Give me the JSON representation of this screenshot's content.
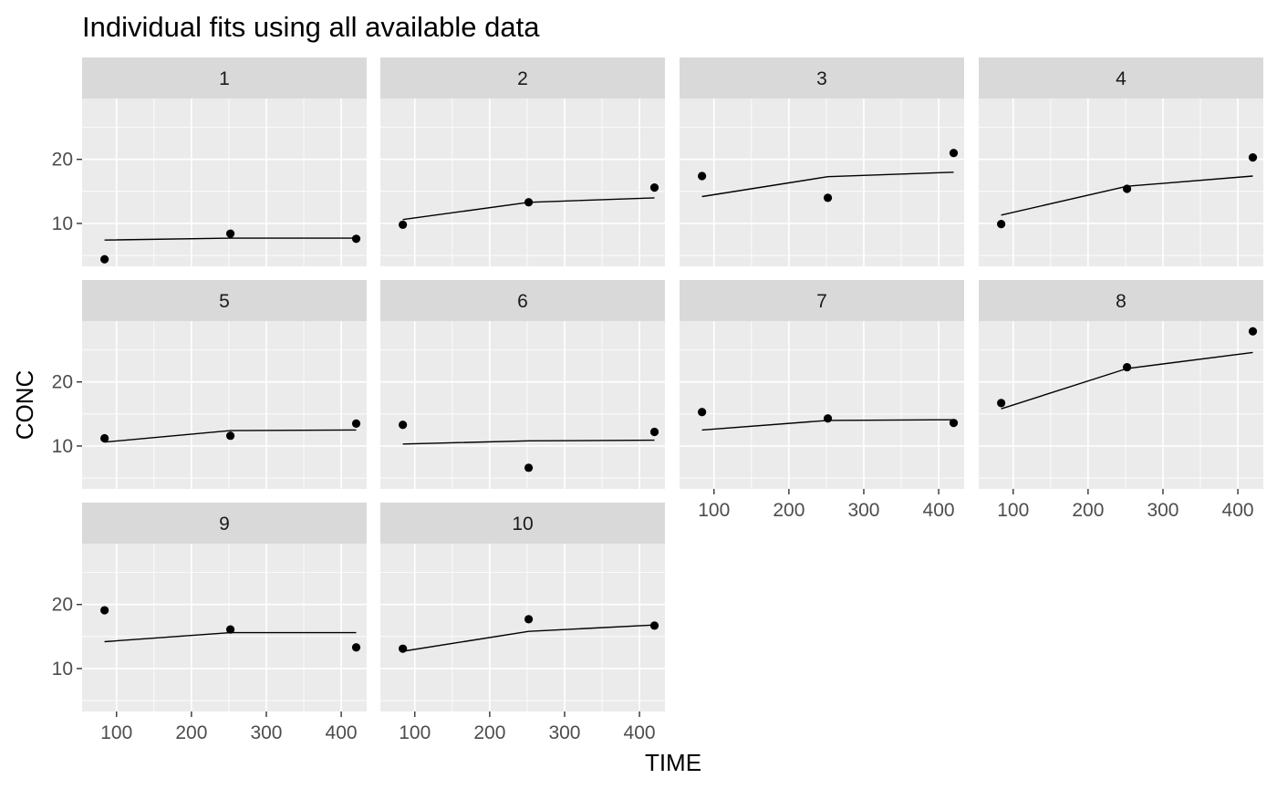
{
  "chart_data": {
    "type": "scatter",
    "title": "Individual fits using all available data",
    "xlabel": "TIME",
    "ylabel": "CONC",
    "facet_layout": {
      "columns": 4,
      "rows": 3
    },
    "xlim": [
      54,
      434
    ],
    "ylim": [
      3.3,
      29.5
    ],
    "x_ticks": [
      100,
      200,
      300,
      400
    ],
    "y_ticks": [
      10,
      20
    ],
    "grid": true,
    "legend": "none",
    "panels": [
      {
        "label": "1",
        "points": [
          [
            84,
            4.4
          ],
          [
            252,
            8.4
          ],
          [
            420,
            7.6
          ]
        ],
        "fit": [
          [
            84,
            7.4
          ],
          [
            252,
            7.7
          ],
          [
            420,
            7.7
          ]
        ]
      },
      {
        "label": "2",
        "points": [
          [
            84,
            9.8
          ],
          [
            252,
            13.3
          ],
          [
            420,
            15.6
          ]
        ],
        "fit": [
          [
            84,
            10.6
          ],
          [
            252,
            13.3
          ],
          [
            420,
            14.0
          ]
        ]
      },
      {
        "label": "3",
        "points": [
          [
            84,
            17.4
          ],
          [
            252,
            14.0
          ],
          [
            420,
            21.0
          ]
        ],
        "fit": [
          [
            84,
            14.2
          ],
          [
            252,
            17.3
          ],
          [
            420,
            18.0
          ]
        ]
      },
      {
        "label": "4",
        "points": [
          [
            84,
            9.9
          ],
          [
            252,
            15.4
          ],
          [
            420,
            20.3
          ]
        ],
        "fit": [
          [
            84,
            11.3
          ],
          [
            252,
            15.8
          ],
          [
            420,
            17.4
          ]
        ]
      },
      {
        "label": "5",
        "points": [
          [
            84,
            11.2
          ],
          [
            252,
            11.6
          ],
          [
            420,
            13.5
          ]
        ],
        "fit": [
          [
            84,
            10.6
          ],
          [
            252,
            12.4
          ],
          [
            420,
            12.5
          ]
        ]
      },
      {
        "label": "6",
        "points": [
          [
            84,
            13.3
          ],
          [
            252,
            6.6
          ],
          [
            420,
            12.2
          ]
        ],
        "fit": [
          [
            84,
            10.3
          ],
          [
            252,
            10.8
          ],
          [
            420,
            10.9
          ]
        ]
      },
      {
        "label": "7",
        "points": [
          [
            84,
            15.3
          ],
          [
            252,
            14.3
          ],
          [
            420,
            13.6
          ]
        ],
        "fit": [
          [
            84,
            12.5
          ],
          [
            252,
            14.0
          ],
          [
            420,
            14.1
          ]
        ]
      },
      {
        "label": "8",
        "points": [
          [
            84,
            16.7
          ],
          [
            252,
            22.3
          ],
          [
            420,
            27.9
          ]
        ],
        "fit": [
          [
            84,
            15.8
          ],
          [
            252,
            22.1
          ],
          [
            420,
            24.6
          ]
        ]
      },
      {
        "label": "9",
        "points": [
          [
            84,
            19.1
          ],
          [
            252,
            16.1
          ],
          [
            420,
            13.3
          ]
        ],
        "fit": [
          [
            84,
            14.2
          ],
          [
            252,
            15.6
          ],
          [
            420,
            15.6
          ]
        ]
      },
      {
        "label": "10",
        "points": [
          [
            84,
            13.1
          ],
          [
            252,
            17.7
          ],
          [
            420,
            16.7
          ]
        ],
        "fit": [
          [
            84,
            12.7
          ],
          [
            252,
            15.8
          ],
          [
            420,
            16.8
          ]
        ]
      }
    ]
  }
}
